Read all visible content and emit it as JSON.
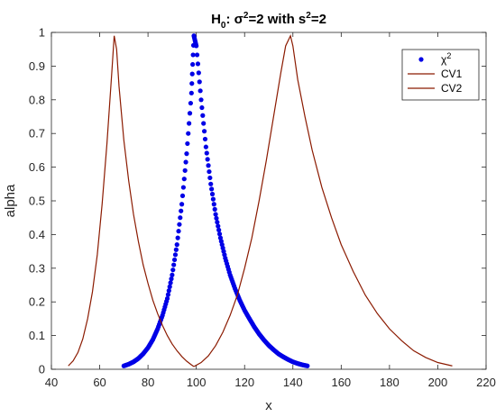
{
  "chart_data": {
    "type": "line",
    "title": {
      "part1": "H",
      "sub": "0",
      "part2": ": σ",
      "sup": "2",
      "part3": "=2 with s",
      "sup2": "2",
      "part4": "=2"
    },
    "xlabel": "x",
    "ylabel": "alpha",
    "xlim": [
      40,
      220
    ],
    "ylim": [
      0,
      1
    ],
    "x_ticks": [
      40,
      60,
      80,
      100,
      120,
      140,
      160,
      180,
      200,
      220
    ],
    "y_ticks": [
      0,
      0.1,
      0.2,
      0.3,
      0.4,
      0.5,
      0.6,
      0.7,
      0.8,
      0.9,
      1
    ],
    "legend": {
      "placement": "top-right",
      "entries": [
        {
          "series": "chi2",
          "label": "χ",
          "sup": "2"
        },
        {
          "series": "cv1",
          "label": "CV1"
        },
        {
          "series": "cv2",
          "label": "CV2"
        }
      ]
    },
    "series": [
      {
        "key": "chi2",
        "style": "dots",
        "color": "#0000e6",
        "x": [
          70,
          72,
          74,
          76,
          78,
          80,
          82,
          84,
          86,
          88,
          90,
          92,
          94,
          96,
          98,
          99,
          100,
          102,
          104,
          106,
          108,
          110,
          112,
          114,
          116,
          118,
          120,
          122,
          124,
          126,
          128,
          130,
          132,
          134,
          136,
          138,
          140,
          142,
          144,
          146
        ],
        "y": [
          0.01,
          0.015,
          0.022,
          0.032,
          0.046,
          0.064,
          0.088,
          0.12,
          0.16,
          0.21,
          0.28,
          0.37,
          0.49,
          0.64,
          0.82,
          0.99,
          0.96,
          0.8,
          0.66,
          0.55,
          0.46,
          0.39,
          0.33,
          0.28,
          0.24,
          0.205,
          0.175,
          0.15,
          0.126,
          0.105,
          0.087,
          0.071,
          0.058,
          0.046,
          0.037,
          0.029,
          0.022,
          0.017,
          0.013,
          0.01
        ]
      },
      {
        "key": "cv1",
        "style": "line",
        "color": "#8b1a00",
        "x": [
          47,
          49,
          51,
          53,
          55,
          57,
          59,
          61,
          63,
          65,
          66,
          67,
          68,
          70,
          72,
          74,
          76,
          78,
          80,
          82,
          84,
          86,
          88,
          90,
          92,
          94,
          96,
          98,
          99
        ],
        "y": [
          0.01,
          0.025,
          0.05,
          0.09,
          0.15,
          0.23,
          0.34,
          0.49,
          0.67,
          0.88,
          0.99,
          0.95,
          0.84,
          0.68,
          0.56,
          0.46,
          0.38,
          0.31,
          0.255,
          0.205,
          0.165,
          0.13,
          0.1,
          0.075,
          0.055,
          0.038,
          0.024,
          0.013,
          0.008
        ]
      },
      {
        "key": "cv2",
        "style": "line",
        "color": "#8b1a00",
        "x": [
          99,
          102,
          105,
          108,
          111,
          114,
          117,
          120,
          123,
          126,
          129,
          132,
          135,
          137,
          139,
          140,
          142,
          145,
          148,
          152,
          156,
          160,
          165,
          170,
          175,
          180,
          185,
          190,
          195,
          200,
          206
        ],
        "y": [
          0.008,
          0.02,
          0.04,
          0.07,
          0.11,
          0.16,
          0.22,
          0.3,
          0.39,
          0.5,
          0.62,
          0.75,
          0.88,
          0.96,
          0.99,
          0.96,
          0.86,
          0.75,
          0.65,
          0.54,
          0.45,
          0.37,
          0.29,
          0.22,
          0.165,
          0.12,
          0.085,
          0.055,
          0.035,
          0.02,
          0.01
        ]
      }
    ]
  }
}
